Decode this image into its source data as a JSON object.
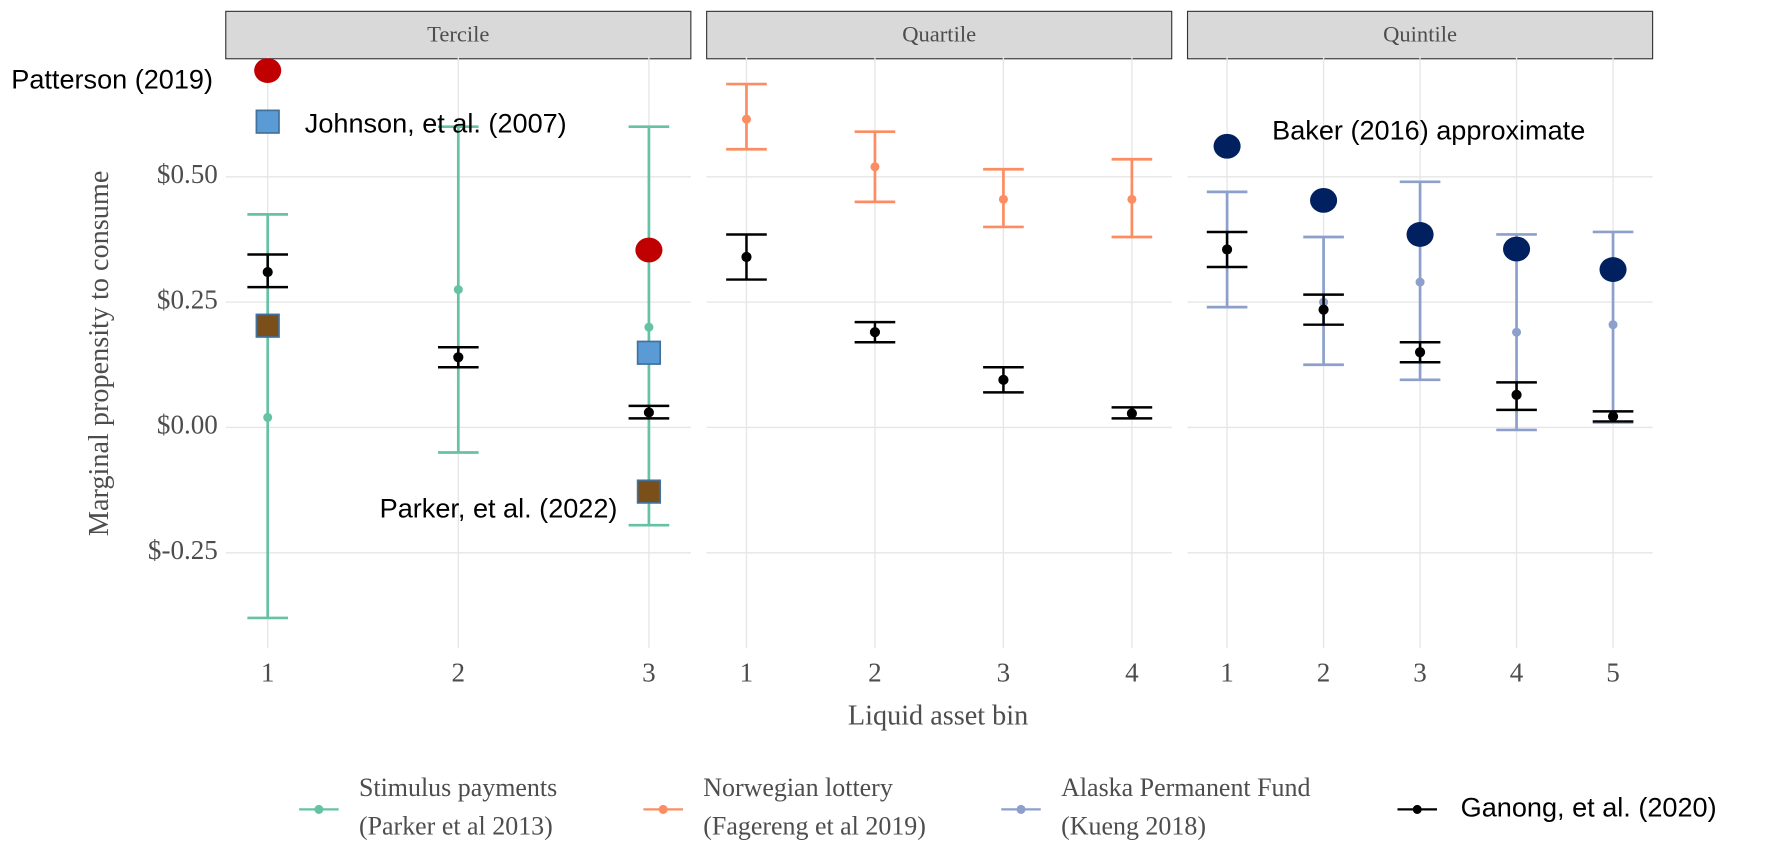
{
  "chart_data": {
    "type": "errorbar",
    "x_label": "Liquid asset bin",
    "y_label": "Marginal propensity to consume",
    "ylim": [
      -0.44,
      0.74
    ],
    "yticks": [
      {
        "value": -0.25,
        "label": "$-0.25"
      },
      {
        "value": 0,
        "label": "$0.00"
      },
      {
        "value": 0.25,
        "label": "$0.25"
      },
      {
        "value": 0.5,
        "label": "$0.50"
      }
    ],
    "grid": true,
    "legend": {
      "position": "bottom",
      "entries": [
        {
          "name": "Stimulus payments\n(Parker et al 2013)",
          "color": "#66c2a5"
        },
        {
          "name": "Norwegian lottery\n(Fagereng et al 2019)",
          "color": "#fc8d62"
        },
        {
          "name": "Alaska Permanent Fund\n(Kueng 2018)",
          "color": "#8da0cb"
        },
        {
          "name": "Ganong, et al. (2020)",
          "color": "#000000"
        }
      ]
    },
    "annotations": [
      "Patterson (2019)",
      "Johnson, et al. (2007)",
      "Parker, et al. (2022)",
      "Baker (2016) approximate"
    ],
    "facets": [
      {
        "title": "Tercile",
        "categories": [
          "1",
          "2",
          "3"
        ],
        "xlim": [
          0.78,
          3.22
        ],
        "series": [
          {
            "color": "#66c2a5",
            "values": [
              0.02,
              0.275,
              0.2
            ],
            "lower": [
              -0.38,
              -0.05,
              -0.195
            ],
            "upper": [
              0.425,
              0.6,
              0.6
            ]
          },
          {
            "color": "#000000",
            "values": [
              0.31,
              0.14,
              0.03
            ],
            "lower": [
              0.28,
              0.12,
              0.018
            ],
            "upper": [
              0.345,
              0.16,
              0.043
            ]
          }
        ],
        "overlays": [
          {
            "marker": "circle",
            "color": "#c00000",
            "values": [
              0.712,
              null,
              0.354
            ]
          },
          {
            "marker": "square",
            "color": "#5b9bd5",
            "values": [
              0.61,
              null,
              0.149
            ]
          },
          {
            "marker": "square",
            "color": "#7b4f1a",
            "values": [
              0.203,
              null,
              -0.128
            ]
          }
        ]
      },
      {
        "title": "Quartile",
        "categories": [
          "1",
          "2",
          "3",
          "4"
        ],
        "xlim": [
          0.69,
          4.31
        ],
        "series": [
          {
            "color": "#fc8d62",
            "values": [
              0.615,
              0.52,
              0.455,
              0.455
            ],
            "lower": [
              0.555,
              0.45,
              0.4,
              0.38
            ],
            "upper": [
              0.685,
              0.59,
              0.515,
              0.535
            ]
          },
          {
            "color": "#000000",
            "values": [
              0.34,
              0.19,
              0.095,
              0.028
            ],
            "lower": [
              0.295,
              0.17,
              0.07,
              0.018
            ],
            "upper": [
              0.385,
              0.21,
              0.12,
              0.04
            ]
          }
        ],
        "overlays": []
      },
      {
        "title": "Quintile",
        "categories": [
          "1",
          "2",
          "3",
          "4",
          "5"
        ],
        "xlim": [
          0.59,
          5.41
        ],
        "series": [
          {
            "color": "#8da0cb",
            "values": [
              0.355,
              0.25,
              0.29,
              0.19,
              0.205
            ],
            "lower": [
              0.24,
              0.125,
              0.095,
              -0.005,
              0.01
            ],
            "upper": [
              0.47,
              0.38,
              0.49,
              0.385,
              0.39
            ]
          },
          {
            "color": "#000000",
            "values": [
              0.355,
              0.235,
              0.15,
              0.065,
              0.022
            ],
            "lower": [
              0.32,
              0.205,
              0.13,
              0.035,
              0.012
            ],
            "upper": [
              0.39,
              0.265,
              0.17,
              0.09,
              0.032
            ]
          }
        ],
        "overlays": [
          {
            "marker": "circle",
            "color": "#002060",
            "values": [
              0.561,
              0.453,
              0.385,
              0.356,
              0.315
            ]
          }
        ]
      }
    ]
  }
}
